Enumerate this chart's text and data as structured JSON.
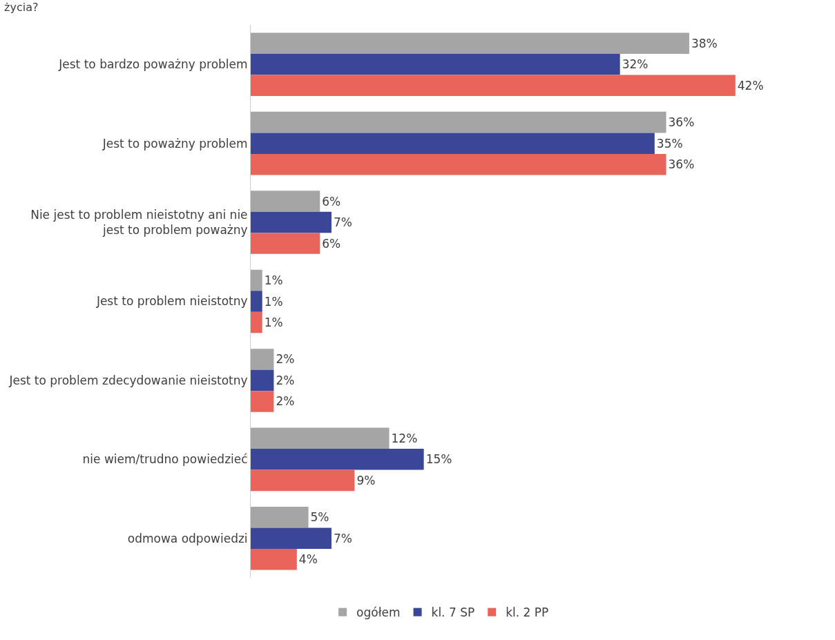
{
  "chart_data": {
    "type": "bar",
    "orientation": "horizontal",
    "title": "życia?",
    "categories": [
      "Jest to bardzo poważny problem",
      "Jest to poważny problem",
      "Nie jest to problem nieistotny ani nie jest to problem poważny",
      "Jest to problem nieistotny",
      "Jest to problem zdecydowanie nieistotny",
      "nie wiem/trudno powiedzieć",
      "odmowa odpowiedzi"
    ],
    "series": [
      {
        "name": "ogółem",
        "color": "#a5a5a5",
        "values": [
          38,
          36,
          6,
          1,
          2,
          12,
          5
        ],
        "value_labels": [
          "38%",
          "36%",
          "6%",
          "1%",
          "2%",
          "12%",
          "5%"
        ]
      },
      {
        "name": "kl. 7 SP",
        "color": "#3a4697",
        "values": [
          32,
          35,
          7,
          1,
          2,
          15,
          7
        ],
        "value_labels": [
          "32%",
          "35%",
          "7%",
          "1%",
          "2%",
          "15%",
          "7%"
        ]
      },
      {
        "name": "kl. 2 PP",
        "color": "#ea645a",
        "values": [
          42,
          36,
          6,
          1,
          2,
          9,
          4
        ],
        "value_labels": [
          "42%",
          "36%",
          "6%",
          "1%",
          "2%",
          "9%",
          "4%"
        ]
      }
    ],
    "legend": "bottom"
  }
}
